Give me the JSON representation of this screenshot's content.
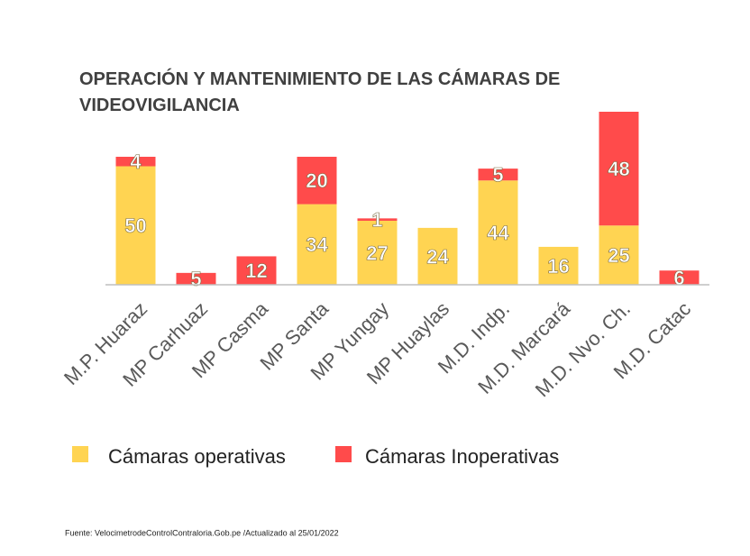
{
  "chart_data": {
    "type": "stacked_bar",
    "title": "OPERACIÓN Y MANTENIMIENTO DE LAS CÁMARAS DE VIDEOVIGILANCIA",
    "categories": [
      "M.P. Huaraz",
      "MP Carhuaz",
      "MP Casma",
      "MP Santa",
      "MP Yungay",
      "MP Huaylas",
      "M.D. Indp.",
      "M.D. Marcará",
      "M.D. Nvo. Ch.",
      "M.D. Catac"
    ],
    "series": [
      {
        "name": "Cámaras operativas",
        "color": "#FFD452",
        "values": [
          50,
          null,
          null,
          34,
          27,
          24,
          44,
          16,
          25,
          null
        ]
      },
      {
        "name": "Cámaras Inoperativas",
        "color": "#FF4B4B",
        "values": [
          4,
          5,
          12,
          20,
          1,
          null,
          5,
          null,
          48,
          6
        ]
      }
    ],
    "source": "Fuente:  VelocimetrodeControlContraloria.Gob.pe  /Actualizado  al 25/01/2022"
  }
}
